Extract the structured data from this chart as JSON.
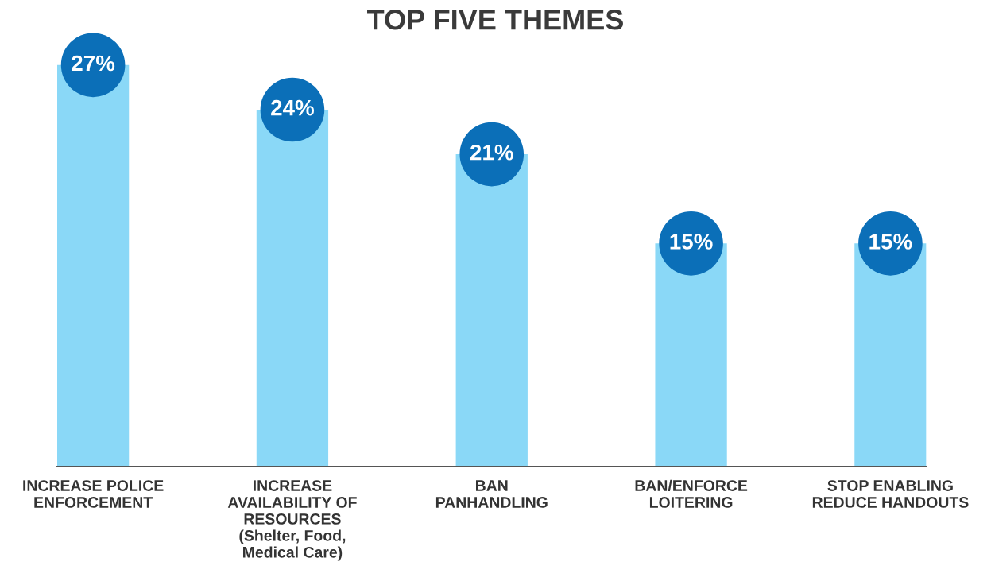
{
  "chart_data": {
    "type": "bar",
    "title": "TOP FIVE THEMES",
    "categories": [
      "INCREASE POLICE\nENFORCEMENT",
      "INCREASE\nAVAILABILITY OF\nRESOURCES\n(Shelter, Food,\nMedical Care)",
      "BAN\nPANHANDLING",
      "BAN/ENFORCE\nLOITERING",
      "STOP ENABLING\nREDUCE HANDOUTS"
    ],
    "values": [
      27,
      24,
      21,
      15,
      15
    ],
    "value_labels": [
      "27%",
      "24%",
      "21%",
      "15%",
      "15%"
    ],
    "color": "#8ad8f7",
    "grid": false,
    "legend": false,
    "tick_labels": "x"
  }
}
